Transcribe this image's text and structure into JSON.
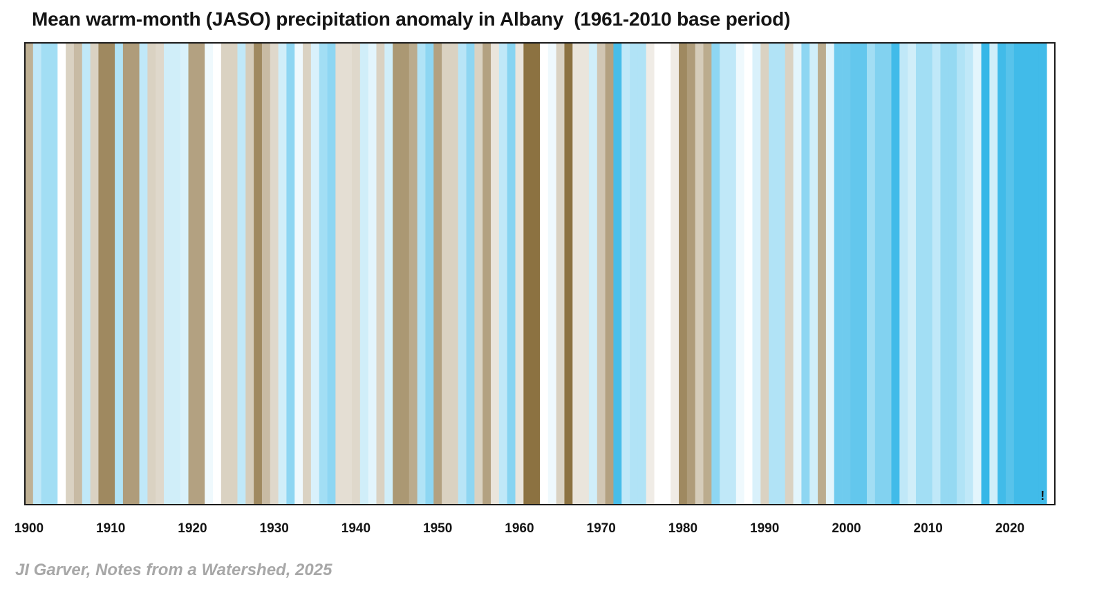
{
  "chart_data": {
    "type": "heatmap",
    "title": "Mean warm-month (JASO) precipitation anomaly in Albany  (1961-2010 base period)",
    "xlabel": "",
    "ylabel": "",
    "credit": "JI Garver, Notes from a Watershed, 2025",
    "x_start": 1900,
    "x_end": 2024,
    "xlim": [
      1899.5,
      2025.5
    ],
    "x_ticks": [
      1900,
      1910,
      1920,
      1930,
      1940,
      1950,
      1960,
      1970,
      1980,
      1990,
      2000,
      2010,
      2020
    ],
    "annotation": "!",
    "annotation_year": 2024,
    "anomaly_scale": "relative, -3 (driest, brown) to +3 (wettest, blue)",
    "values": [
      -1.2,
      0.6,
      1.0,
      1.0,
      0.0,
      -0.6,
      -1.0,
      0.6,
      -0.6,
      -2.0,
      -2.0,
      0.8,
      -1.6,
      -1.6,
      0.6,
      -0.6,
      -0.5,
      0.4,
      0.4,
      0.3,
      -1.5,
      -1.5,
      0.1,
      0.0,
      -0.6,
      -0.6,
      0.6,
      -0.7,
      -2.0,
      -1.0,
      -0.5,
      0.4,
      1.3,
      0.1,
      -0.6,
      0.3,
      1.0,
      1.3,
      -0.4,
      -0.4,
      -0.5,
      0.4,
      0.2,
      -0.6,
      0.4,
      -1.7,
      -1.7,
      -1.3,
      0.8,
      1.3,
      -1.5,
      -0.6,
      -0.6,
      0.7,
      1.3,
      -0.6,
      -1.5,
      -0.3,
      0.6,
      1.4,
      -0.3,
      -2.5,
      -2.5,
      0.0,
      0.1,
      -0.6,
      -2.5,
      -0.3,
      -0.3,
      0.4,
      -0.8,
      -1.5,
      2.5,
      0.6,
      0.8,
      0.8,
      -0.2,
      0.0,
      0.0,
      -0.2,
      -2.0,
      -1.6,
      -0.7,
      -1.3,
      1.3,
      0.6,
      0.6,
      0.1,
      0.0,
      0.3,
      -0.6,
      0.8,
      0.8,
      -0.6,
      0.2,
      1.3,
      0.4,
      -1.3,
      0.2,
      1.8,
      1.8,
      2.0,
      2.0,
      1.0,
      1.5,
      1.5,
      2.6,
      0.6,
      0.4,
      1.0,
      1.0,
      0.6,
      1.2,
      1.2,
      0.8,
      0.6,
      0.2,
      2.8,
      0.4,
      2.6,
      2.2,
      2.6,
      2.6,
      2.6,
      2.6
    ]
  },
  "colors": {
    "wet_max": "#2cb3e6",
    "neutral": "#ffffff",
    "dry_max": "#7a5c23",
    "frame": "#1a1a1a",
    "text": "#141414",
    "credit": "#a7a7a7"
  }
}
